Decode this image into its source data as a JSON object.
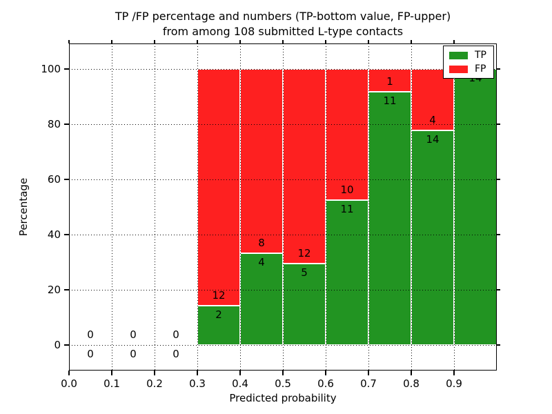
{
  "figure": {
    "title_line1": "TP /FP percentage and numbers (TP-bottom value, FP-upper)",
    "title_line2": "from among 108 submitted L-type contacts"
  },
  "chart_data": {
    "type": "bar",
    "stacked": true,
    "title": "TP /FP percentage and numbers (TP-bottom value, FP-upper) from among 108 submitted L-type contacts",
    "xlabel": "Predicted probability",
    "ylabel": "Percentage",
    "xlim": [
      0.0,
      1.0
    ],
    "ylim": [
      -9.25,
      109.25
    ],
    "grid": "dotted",
    "legend_position": "upper right",
    "total_contacts": 108,
    "x_ticks": [
      {
        "v": 0.0,
        "label": "0.0"
      },
      {
        "v": 0.1,
        "label": "0.1"
      },
      {
        "v": 0.2,
        "label": "0.2"
      },
      {
        "v": 0.3,
        "label": "0.3"
      },
      {
        "v": 0.4,
        "label": "0.4"
      },
      {
        "v": 0.5,
        "label": "0.5"
      },
      {
        "v": 0.6,
        "label": "0.6"
      },
      {
        "v": 0.7,
        "label": "0.7"
      },
      {
        "v": 0.8,
        "label": "0.8"
      },
      {
        "v": 0.9,
        "label": "0.9"
      }
    ],
    "y_ticks": [
      {
        "v": 0,
        "label": "0"
      },
      {
        "v": 20,
        "label": "20"
      },
      {
        "v": 40,
        "label": "40"
      },
      {
        "v": 60,
        "label": "60"
      },
      {
        "v": 80,
        "label": "80"
      },
      {
        "v": 100,
        "label": "100"
      }
    ],
    "bins": [
      {
        "x0": 0.0,
        "x1": 0.1,
        "tp": 0,
        "fp": 0
      },
      {
        "x0": 0.1,
        "x1": 0.2,
        "tp": 0,
        "fp": 0
      },
      {
        "x0": 0.2,
        "x1": 0.3,
        "tp": 0,
        "fp": 0
      },
      {
        "x0": 0.3,
        "x1": 0.4,
        "tp": 2,
        "fp": 12
      },
      {
        "x0": 0.4,
        "x1": 0.5,
        "tp": 4,
        "fp": 8
      },
      {
        "x0": 0.5,
        "x1": 0.6,
        "tp": 5,
        "fp": 12
      },
      {
        "x0": 0.6,
        "x1": 0.7,
        "tp": 11,
        "fp": 10
      },
      {
        "x0": 0.7,
        "x1": 0.8,
        "tp": 11,
        "fp": 1
      },
      {
        "x0": 0.8,
        "x1": 0.9,
        "tp": 14,
        "fp": 4
      },
      {
        "x0": 0.9,
        "x1": 1.0,
        "tp": 14,
        "fp": 0
      }
    ],
    "legend": [
      {
        "name": "TP",
        "color": "#229422"
      },
      {
        "name": "FP",
        "color": "#fe2020"
      }
    ]
  }
}
